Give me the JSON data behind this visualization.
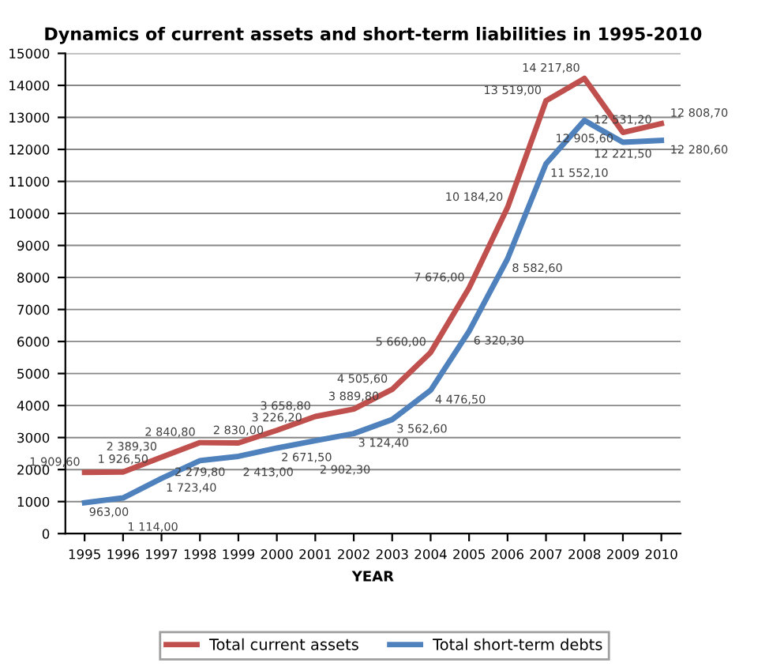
{
  "chart_data": {
    "type": "line",
    "title": "Dynamics of current assets and short-term liabilities in 1995-2010",
    "xlabel": "YEAR",
    "categories": [
      "1995",
      "1996",
      "1997",
      "1998",
      "1999",
      "2000",
      "2001",
      "2002",
      "2003",
      "2004",
      "2005",
      "2006",
      "2007",
      "2008",
      "2009",
      "2010"
    ],
    "series": [
      {
        "name": "Total current assets",
        "color": "#c0504d",
        "values": [
          1909.6,
          1926.5,
          2389.3,
          2840.8,
          2830.0,
          3226.2,
          3658.8,
          3889.8,
          4505.6,
          5660.0,
          7676.0,
          10184.2,
          13519.0,
          14217.8,
          12531.2,
          12808.7
        ],
        "value_labels": [
          "1 909,60",
          "1 926,50",
          "2 389,30",
          "2 840,80",
          "2 830,00",
          "3 226,20",
          "3 658,80",
          "3 889,80",
          "4 505,60",
          "5 660,00",
          "7 676,00",
          "10 184,20",
          "13 519,00",
          "14 217,80",
          "12 531,20",
          "12 808,70"
        ]
      },
      {
        "name": "Total short-term debts",
        "color": "#4f81bd",
        "values": [
          963.0,
          1114.0,
          1723.4,
          2279.8,
          2413.0,
          2671.5,
          2902.3,
          3124.4,
          3562.6,
          4476.5,
          6320.3,
          8582.6,
          11552.1,
          12905.6,
          12221.5,
          12280.6
        ],
        "value_labels": [
          "963,00",
          "1 114,00",
          "1 723,40",
          "2 279,80",
          "2 413,00",
          "2 671,50",
          "2 902,30",
          "3 124,40",
          "3 562,60",
          "4 476,50",
          "6 320,30",
          "8 582,60",
          "11 552,10",
          "12 905,60",
          "12 221,50",
          "12 280,60"
        ]
      }
    ],
    "ylim": [
      0,
      15000
    ],
    "yticks": [
      0,
      1000,
      2000,
      3000,
      4000,
      5000,
      6000,
      7000,
      8000,
      9000,
      10000,
      11000,
      12000,
      13000,
      14000,
      15000
    ],
    "grid": "y",
    "legend": "bottom",
    "marker": "none",
    "line_style": "solid"
  }
}
